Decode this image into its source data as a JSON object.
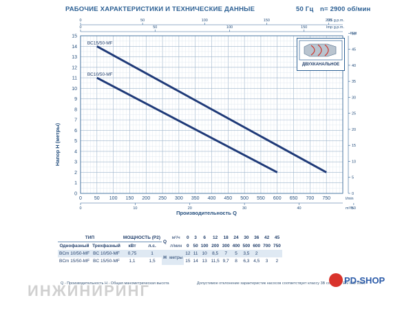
{
  "header": {
    "title": "РАБОЧИЕ ХАРАКТЕРИСТИКИ И ТЕХНИЧЕСКИЕ ДАННЫЕ",
    "freq": "50 Гц",
    "speed": "n= 2900 об/мин"
  },
  "chart_data": {
    "type": "line",
    "xlabel": "Производительность Q",
    "ylabel": "Напор H (метры)",
    "x_unit": "l/min",
    "xlim": [
      0,
      800
    ],
    "ylim": [
      0,
      15
    ],
    "x_ticks": [
      0,
      50,
      100,
      150,
      200,
      250,
      300,
      350,
      400,
      450,
      500,
      550,
      600,
      650,
      700,
      750
    ],
    "y_ticks": [
      0,
      1,
      2,
      3,
      4,
      5,
      6,
      7,
      8,
      9,
      10,
      11,
      12,
      13,
      14,
      15
    ],
    "top_axis_1": {
      "unit": "US g.p.m.",
      "ticks": [
        "0",
        "50",
        "100",
        "150",
        "200"
      ]
    },
    "top_axis_2": {
      "unit": "Imp g.p.m.",
      "ticks": [
        "0",
        "50",
        "100",
        "150"
      ]
    },
    "bottom_axis_2": {
      "unit": "m³/h",
      "ticks": [
        "0",
        "10",
        "20",
        "30",
        "40",
        "50"
      ]
    },
    "right_axis": {
      "unit": "feet",
      "ticks": [
        "0",
        "5",
        "10",
        "15",
        "20",
        "25",
        "30",
        "35",
        "40",
        "45",
        "50"
      ]
    },
    "series": [
      {
        "name": "BC15/50-MF",
        "x": [
          50,
          750
        ],
        "y": [
          14,
          2
        ],
        "color": "#1f3a78"
      },
      {
        "name": "BC10/50-MF",
        "x": [
          50,
          600
        ],
        "y": [
          11,
          2
        ],
        "color": "#1f3a78"
      }
    ],
    "grid": true
  },
  "inset": {
    "label": "ДВУХКАНАЛЬНОЕ"
  },
  "table": {
    "head1": {
      "type": "ТИП",
      "power": "МОЩНОСТЬ (P2)",
      "q": "Q"
    },
    "head2": {
      "single": "Однофазный",
      "three": "Трехфазный",
      "kw": "кВт",
      "hp": "л.с."
    },
    "q_units": {
      "m3h": "м³/ч",
      "lmin": "л/мин"
    },
    "q_m3h": [
      "0",
      "3",
      "6",
      "12",
      "18",
      "24",
      "30",
      "36",
      "42",
      "45"
    ],
    "q_lmin": [
      "0",
      "50",
      "100",
      "200",
      "300",
      "400",
      "500",
      "600",
      "700",
      "750"
    ],
    "h_label": "H",
    "h_unit": "метры",
    "rows": [
      {
        "single": "BCm 10/50-MF",
        "three": "BC 10/50-MF",
        "kw": "0,75",
        "hp": "1",
        "h": [
          "12",
          "11",
          "10",
          "8,5",
          "7",
          "5",
          "3,5",
          "2",
          "",
          ""
        ]
      },
      {
        "single": "BCm 15/50-MF",
        "three": "BC 15/50-MF",
        "kw": "1,1",
        "hp": "1,5",
        "h": [
          "15",
          "14",
          "13",
          "11,5",
          "9,7",
          "8",
          "6,3",
          "4,5",
          "3",
          "2"
        ]
      }
    ]
  },
  "footer": {
    "left": "Q - Производительность  H - Общая манометрическая высота",
    "right": "Допустимое отклонение характеристик насосов соответствует классу 3В согласно EN ISO 9906"
  },
  "watermarks": {
    "left": "ИНЖИНИРИНГ",
    "right": "PD-SHOP"
  }
}
